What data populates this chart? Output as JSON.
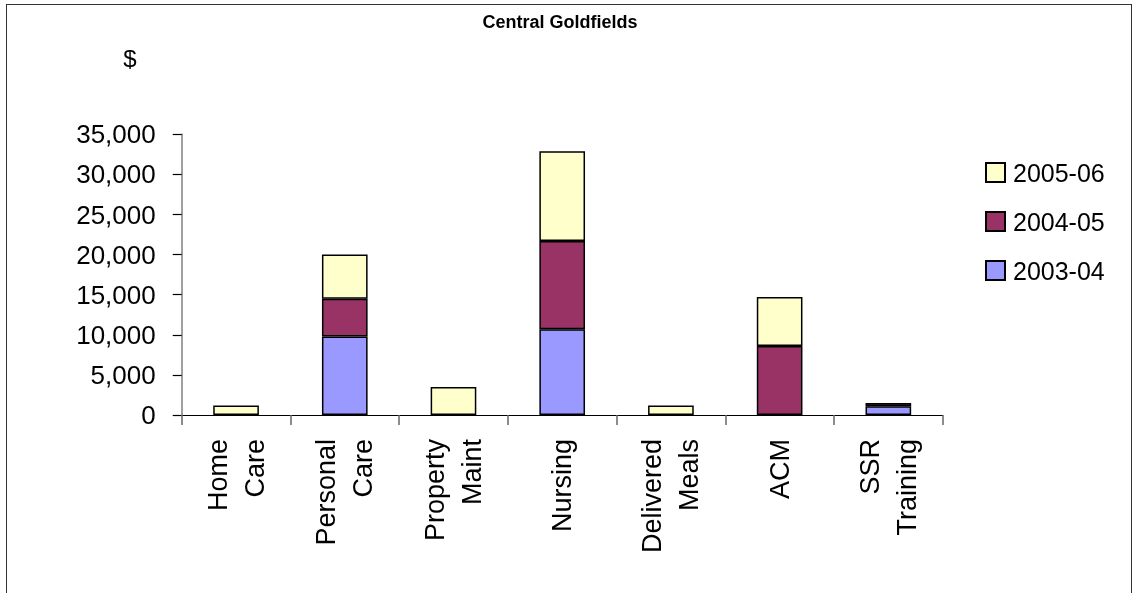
{
  "chart_data": {
    "type": "bar",
    "title": "Central Goldfields",
    "ylabel": "$",
    "categories": [
      "Home Care",
      "Personal Care",
      "Property Maint",
      "Nursing",
      "Delivered Meals",
      "ACM",
      "SSR Training"
    ],
    "series": [
      {
        "name": "2003-04",
        "color": "#9999ff",
        "values": [
          null,
          9800,
          null,
          10700,
          null,
          null,
          1100
        ]
      },
      {
        "name": "2004-05",
        "color": "#993366",
        "values": [
          null,
          4700,
          null,
          11000,
          null,
          8600,
          400
        ]
      },
      {
        "name": "2005-06",
        "color": "#ffffcc",
        "values": [
          1200,
          5500,
          3500,
          11200,
          1200,
          6100,
          null
        ]
      }
    ],
    "stacked": true,
    "ylim": [
      0,
      35000
    ],
    "yticks": [
      {
        "value": 0,
        "label": "0"
      },
      {
        "value": 5000,
        "label": "5,000"
      },
      {
        "value": 10000,
        "label": "10,000"
      },
      {
        "value": 15000,
        "label": "15,000"
      },
      {
        "value": 20000,
        "label": "20,000"
      },
      {
        "value": 25000,
        "label": "25,000"
      },
      {
        "value": 30000,
        "label": "30,000"
      },
      {
        "value": 35000,
        "label": "35,000"
      }
    ],
    "legend": "right"
  }
}
